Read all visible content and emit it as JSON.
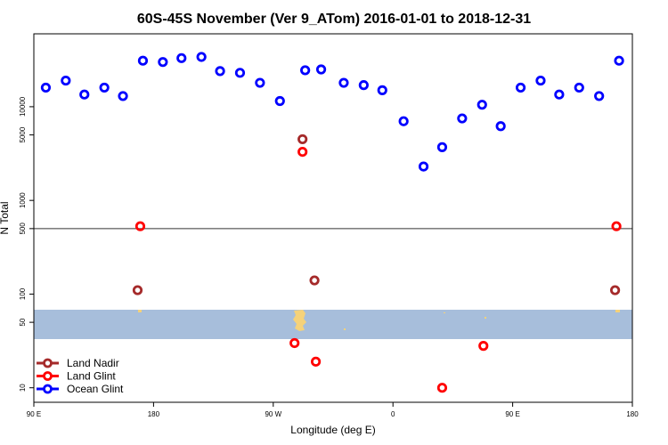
{
  "chart_data": {
    "type": "scatter",
    "title": "60S-45S November (Ver 9_ATom)   2016-01-01 to 2018-12-31",
    "xlabel": "Longitude (deg E)",
    "ylabel": "N Total",
    "xlim": [
      90,
      540
    ],
    "ylim_log": [
      7,
      60000
    ],
    "y_scale": "log",
    "x_ticks": [
      {
        "value": 90,
        "label": "90 E"
      },
      {
        "value": 180,
        "label": "180"
      },
      {
        "value": 270,
        "label": "90 W"
      },
      {
        "value": 360,
        "label": "0"
      },
      {
        "value": 450,
        "label": "90 E"
      },
      {
        "value": 540,
        "label": "180"
      }
    ],
    "y_ticks": [
      {
        "value": 10,
        "label": "10"
      },
      {
        "value": 50,
        "label": "50"
      },
      {
        "value": 100,
        "label": "100"
      },
      {
        "value": 500,
        "label": "500"
      },
      {
        "value": 1000,
        "label": "1000"
      },
      {
        "value": 5000,
        "label": "5000"
      },
      {
        "value": 10000,
        "label": "10000"
      }
    ],
    "reference_line_y": 500,
    "legend_position": "bottom-left",
    "series": [
      {
        "name": "Land Nadir",
        "color": "#a52a2a",
        "points": [
          {
            "x": 168,
            "y": 110
          },
          {
            "x": 292,
            "y": 4500
          },
          {
            "x": 301,
            "y": 140
          },
          {
            "x": 527,
            "y": 110
          }
        ]
      },
      {
        "name": "Land Glint",
        "color": "#ff0000",
        "points": [
          {
            "x": 170,
            "y": 530
          },
          {
            "x": 292,
            "y": 3300
          },
          {
            "x": 286,
            "y": 30
          },
          {
            "x": 302,
            "y": 19
          },
          {
            "x": 397,
            "y": 10
          },
          {
            "x": 428,
            "y": 28
          },
          {
            "x": 528,
            "y": 530
          }
        ]
      },
      {
        "name": "Ocean Glint",
        "color": "#0000ff",
        "points": [
          {
            "x": 99,
            "y": 16000
          },
          {
            "x": 114,
            "y": 19000
          },
          {
            "x": 128,
            "y": 13500
          },
          {
            "x": 143,
            "y": 16000
          },
          {
            "x": 157,
            "y": 13000
          },
          {
            "x": 172,
            "y": 31000
          },
          {
            "x": 187,
            "y": 30000
          },
          {
            "x": 201,
            "y": 33000
          },
          {
            "x": 216,
            "y": 34000
          },
          {
            "x": 230,
            "y": 24000
          },
          {
            "x": 245,
            "y": 23000
          },
          {
            "x": 260,
            "y": 18000
          },
          {
            "x": 275,
            "y": 11500
          },
          {
            "x": 294,
            "y": 24500
          },
          {
            "x": 306,
            "y": 25000
          },
          {
            "x": 323,
            "y": 18000
          },
          {
            "x": 338,
            "y": 17000
          },
          {
            "x": 352,
            "y": 15000
          },
          {
            "x": 368,
            "y": 7000
          },
          {
            "x": 383,
            "y": 2300
          },
          {
            "x": 397,
            "y": 3700
          },
          {
            "x": 412,
            "y": 7500
          },
          {
            "x": 427,
            "y": 10500
          },
          {
            "x": 441,
            "y": 6200
          },
          {
            "x": 456,
            "y": 16000
          },
          {
            "x": 471,
            "y": 19000
          },
          {
            "x": 485,
            "y": 13500
          },
          {
            "x": 500,
            "y": 16000
          },
          {
            "x": 515,
            "y": 13000
          },
          {
            "x": 530,
            "y": 31000
          }
        ]
      }
    ]
  }
}
